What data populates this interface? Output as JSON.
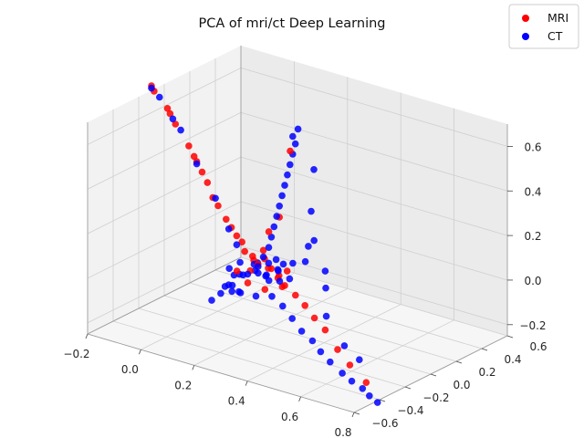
{
  "chart_data": {
    "type": "scatter",
    "projection": "3d",
    "title": "PCA of mri/ct Deep Learning",
    "xlabel": "",
    "ylabel": "",
    "zlabel": "",
    "grid": true,
    "legend_position": "top-right",
    "axes": {
      "x": {
        "range": [
          -0.2,
          0.8
        ],
        "ticks": [
          -0.2,
          0.0,
          0.2,
          0.4,
          0.6,
          0.8
        ],
        "tick_labels": [
          "−0.2",
          "0.0",
          "0.2",
          "0.4",
          "0.6",
          "0.8"
        ]
      },
      "y": {
        "range": [
          -0.6,
          0.6
        ],
        "ticks": [
          -0.6,
          -0.4,
          -0.2,
          0.0,
          0.2,
          0.4,
          0.6
        ],
        "tick_labels": [
          "−0.6",
          "−0.4",
          "−0.2",
          "0.0",
          "0.2",
          "0.4",
          "0.6"
        ]
      },
      "z": {
        "range": [
          -0.25,
          0.7
        ],
        "ticks": [
          -0.2,
          0.0,
          0.2,
          0.4,
          0.6
        ],
        "tick_labels": [
          "−0.2",
          "0.0",
          "0.2",
          "0.4",
          "0.6"
        ]
      }
    },
    "series": [
      {
        "name": "MRI",
        "color": "#ff0000",
        "points": [
          [
            -0.2,
            -0.1,
            0.72
          ],
          [
            -0.19,
            -0.1,
            0.7
          ],
          [
            -0.14,
            -0.1,
            0.64
          ],
          [
            -0.13,
            -0.1,
            0.62
          ],
          [
            -0.11,
            -0.1,
            0.58
          ],
          [
            -0.06,
            -0.1,
            0.5
          ],
          [
            -0.04,
            -0.1,
            0.46
          ],
          [
            -0.03,
            -0.1,
            0.44
          ],
          [
            -0.01,
            -0.1,
            0.4
          ],
          [
            0.01,
            -0.1,
            0.36
          ],
          [
            0.03,
            -0.1,
            0.3
          ],
          [
            0.05,
            -0.1,
            0.27
          ],
          [
            0.08,
            -0.1,
            0.22
          ],
          [
            0.1,
            -0.1,
            0.19
          ],
          [
            0.12,
            -0.1,
            0.16
          ],
          [
            0.13,
            -0.08,
            0.13
          ],
          [
            0.15,
            -0.1,
            0.1
          ],
          [
            0.17,
            -0.08,
            0.08
          ],
          [
            0.2,
            -0.1,
            0.06
          ],
          [
            0.22,
            -0.1,
            0.13
          ],
          [
            0.25,
            -0.12,
            0.23
          ],
          [
            0.28,
            -0.1,
            0.3
          ],
          [
            0.33,
            -0.12,
            0.62
          ],
          [
            0.16,
            -0.05,
            0.05
          ],
          [
            0.18,
            -0.12,
            0.03
          ],
          [
            0.23,
            -0.06,
            0.04
          ],
          [
            0.27,
            -0.09,
            0.02
          ],
          [
            0.3,
            -0.1,
            0.0
          ],
          [
            0.35,
            -0.12,
            -0.02
          ],
          [
            0.4,
            -0.15,
            -0.04
          ],
          [
            0.45,
            -0.18,
            -0.07
          ],
          [
            0.5,
            -0.2,
            -0.1
          ],
          [
            0.58,
            -0.27,
            -0.14
          ],
          [
            0.65,
            -0.32,
            -0.17
          ],
          [
            0.74,
            -0.38,
            -0.2
          ],
          [
            0.2,
            -0.02,
            0.02
          ],
          [
            0.25,
            -0.04,
            0.01
          ],
          [
            0.14,
            -0.14,
            0.02
          ],
          [
            0.19,
            -0.16,
            -0.01
          ],
          [
            0.24,
            -0.13,
            -0.03
          ],
          [
            0.21,
            -0.07,
            0.08
          ],
          [
            0.29,
            -0.06,
            0.05
          ],
          [
            0.31,
            -0.14,
            0.01
          ]
        ]
      },
      {
        "name": "CT",
        "color": "#0000ff",
        "points": [
          [
            -0.2,
            -0.1,
            0.71
          ],
          [
            -0.17,
            -0.1,
            0.68
          ],
          [
            -0.12,
            -0.1,
            0.6
          ],
          [
            -0.09,
            -0.1,
            0.56
          ],
          [
            -0.03,
            -0.1,
            0.43
          ],
          [
            0.04,
            -0.1,
            0.3
          ],
          [
            0.09,
            -0.1,
            0.18
          ],
          [
            0.12,
            -0.1,
            0.12
          ],
          [
            0.2,
            -0.1,
            0.05
          ],
          [
            0.22,
            -0.1,
            0.1
          ],
          [
            0.24,
            -0.1,
            0.15
          ],
          [
            0.25,
            -0.1,
            0.2
          ],
          [
            0.26,
            -0.1,
            0.25
          ],
          [
            0.27,
            -0.1,
            0.3
          ],
          [
            0.28,
            -0.1,
            0.35
          ],
          [
            0.29,
            -0.1,
            0.4
          ],
          [
            0.3,
            -0.1,
            0.45
          ],
          [
            0.31,
            -0.1,
            0.5
          ],
          [
            0.32,
            -0.1,
            0.55
          ],
          [
            0.33,
            -0.1,
            0.6
          ],
          [
            0.34,
            -0.1,
            0.65
          ],
          [
            0.33,
            -0.1,
            0.68
          ],
          [
            0.35,
            -0.1,
            0.72
          ],
          [
            0.4,
            -0.08,
            0.55
          ],
          [
            0.38,
            -0.06,
            0.35
          ],
          [
            0.42,
            -0.12,
            0.25
          ],
          [
            0.36,
            -0.04,
            0.18
          ],
          [
            0.3,
            -0.15,
            0.08
          ],
          [
            0.34,
            -0.12,
            0.12
          ],
          [
            0.27,
            -0.18,
            0.06
          ],
          [
            0.25,
            -0.05,
            0.04
          ],
          [
            0.18,
            -0.14,
            0.02
          ],
          [
            0.16,
            -0.02,
            0.03
          ],
          [
            0.14,
            -0.12,
            0.0
          ],
          [
            0.12,
            -0.05,
            -0.03
          ],
          [
            0.1,
            -0.15,
            -0.06
          ],
          [
            0.08,
            -0.08,
            -0.08
          ],
          [
            0.06,
            -0.1,
            -0.12
          ],
          [
            0.05,
            -0.15,
            -0.14
          ],
          [
            0.07,
            -0.03,
            -0.1
          ],
          [
            0.15,
            -0.2,
            -0.05
          ],
          [
            0.2,
            -0.25,
            -0.02
          ],
          [
            0.23,
            -0.3,
            0.0
          ],
          [
            0.3,
            -0.2,
            -0.02
          ],
          [
            0.35,
            -0.22,
            -0.04
          ],
          [
            0.4,
            -0.25,
            -0.07
          ],
          [
            0.45,
            -0.28,
            -0.1
          ],
          [
            0.5,
            -0.3,
            -0.12
          ],
          [
            0.55,
            -0.34,
            -0.14
          ],
          [
            0.6,
            -0.37,
            -0.16
          ],
          [
            0.66,
            -0.4,
            -0.18
          ],
          [
            0.71,
            -0.43,
            -0.19
          ],
          [
            0.76,
            -0.45,
            -0.2
          ],
          [
            0.8,
            -0.48,
            -0.21
          ],
          [
            0.84,
            -0.5,
            -0.22
          ],
          [
            0.62,
            -0.3,
            -0.1
          ],
          [
            0.7,
            -0.35,
            -0.12
          ],
          [
            0.48,
            -0.15,
            -0.06
          ],
          [
            0.43,
            -0.05,
            0.02
          ],
          [
            0.38,
            0.05,
            0.05
          ],
          [
            0.32,
            0.02,
            0.08
          ],
          [
            0.22,
            0.0,
            0.06
          ],
          [
            0.19,
            -0.22,
            0.1
          ],
          [
            0.21,
            -0.12,
            0.03
          ],
          [
            0.23,
            -0.08,
            0.07
          ],
          [
            0.26,
            -0.14,
            0.02
          ],
          [
            0.17,
            -0.06,
            0.01
          ],
          [
            0.13,
            -0.18,
            0.04
          ],
          [
            0.28,
            -0.02,
            0.0
          ],
          [
            0.24,
            -0.2,
            -0.04
          ],
          [
            0.11,
            -0.1,
            -0.02
          ],
          [
            0.29,
            -0.09,
            0.09
          ],
          [
            0.31,
            -0.16,
            0.04
          ],
          [
            0.2,
            -0.04,
            -0.01
          ],
          [
            0.18,
            -0.09,
            0.05
          ]
        ]
      }
    ]
  }
}
